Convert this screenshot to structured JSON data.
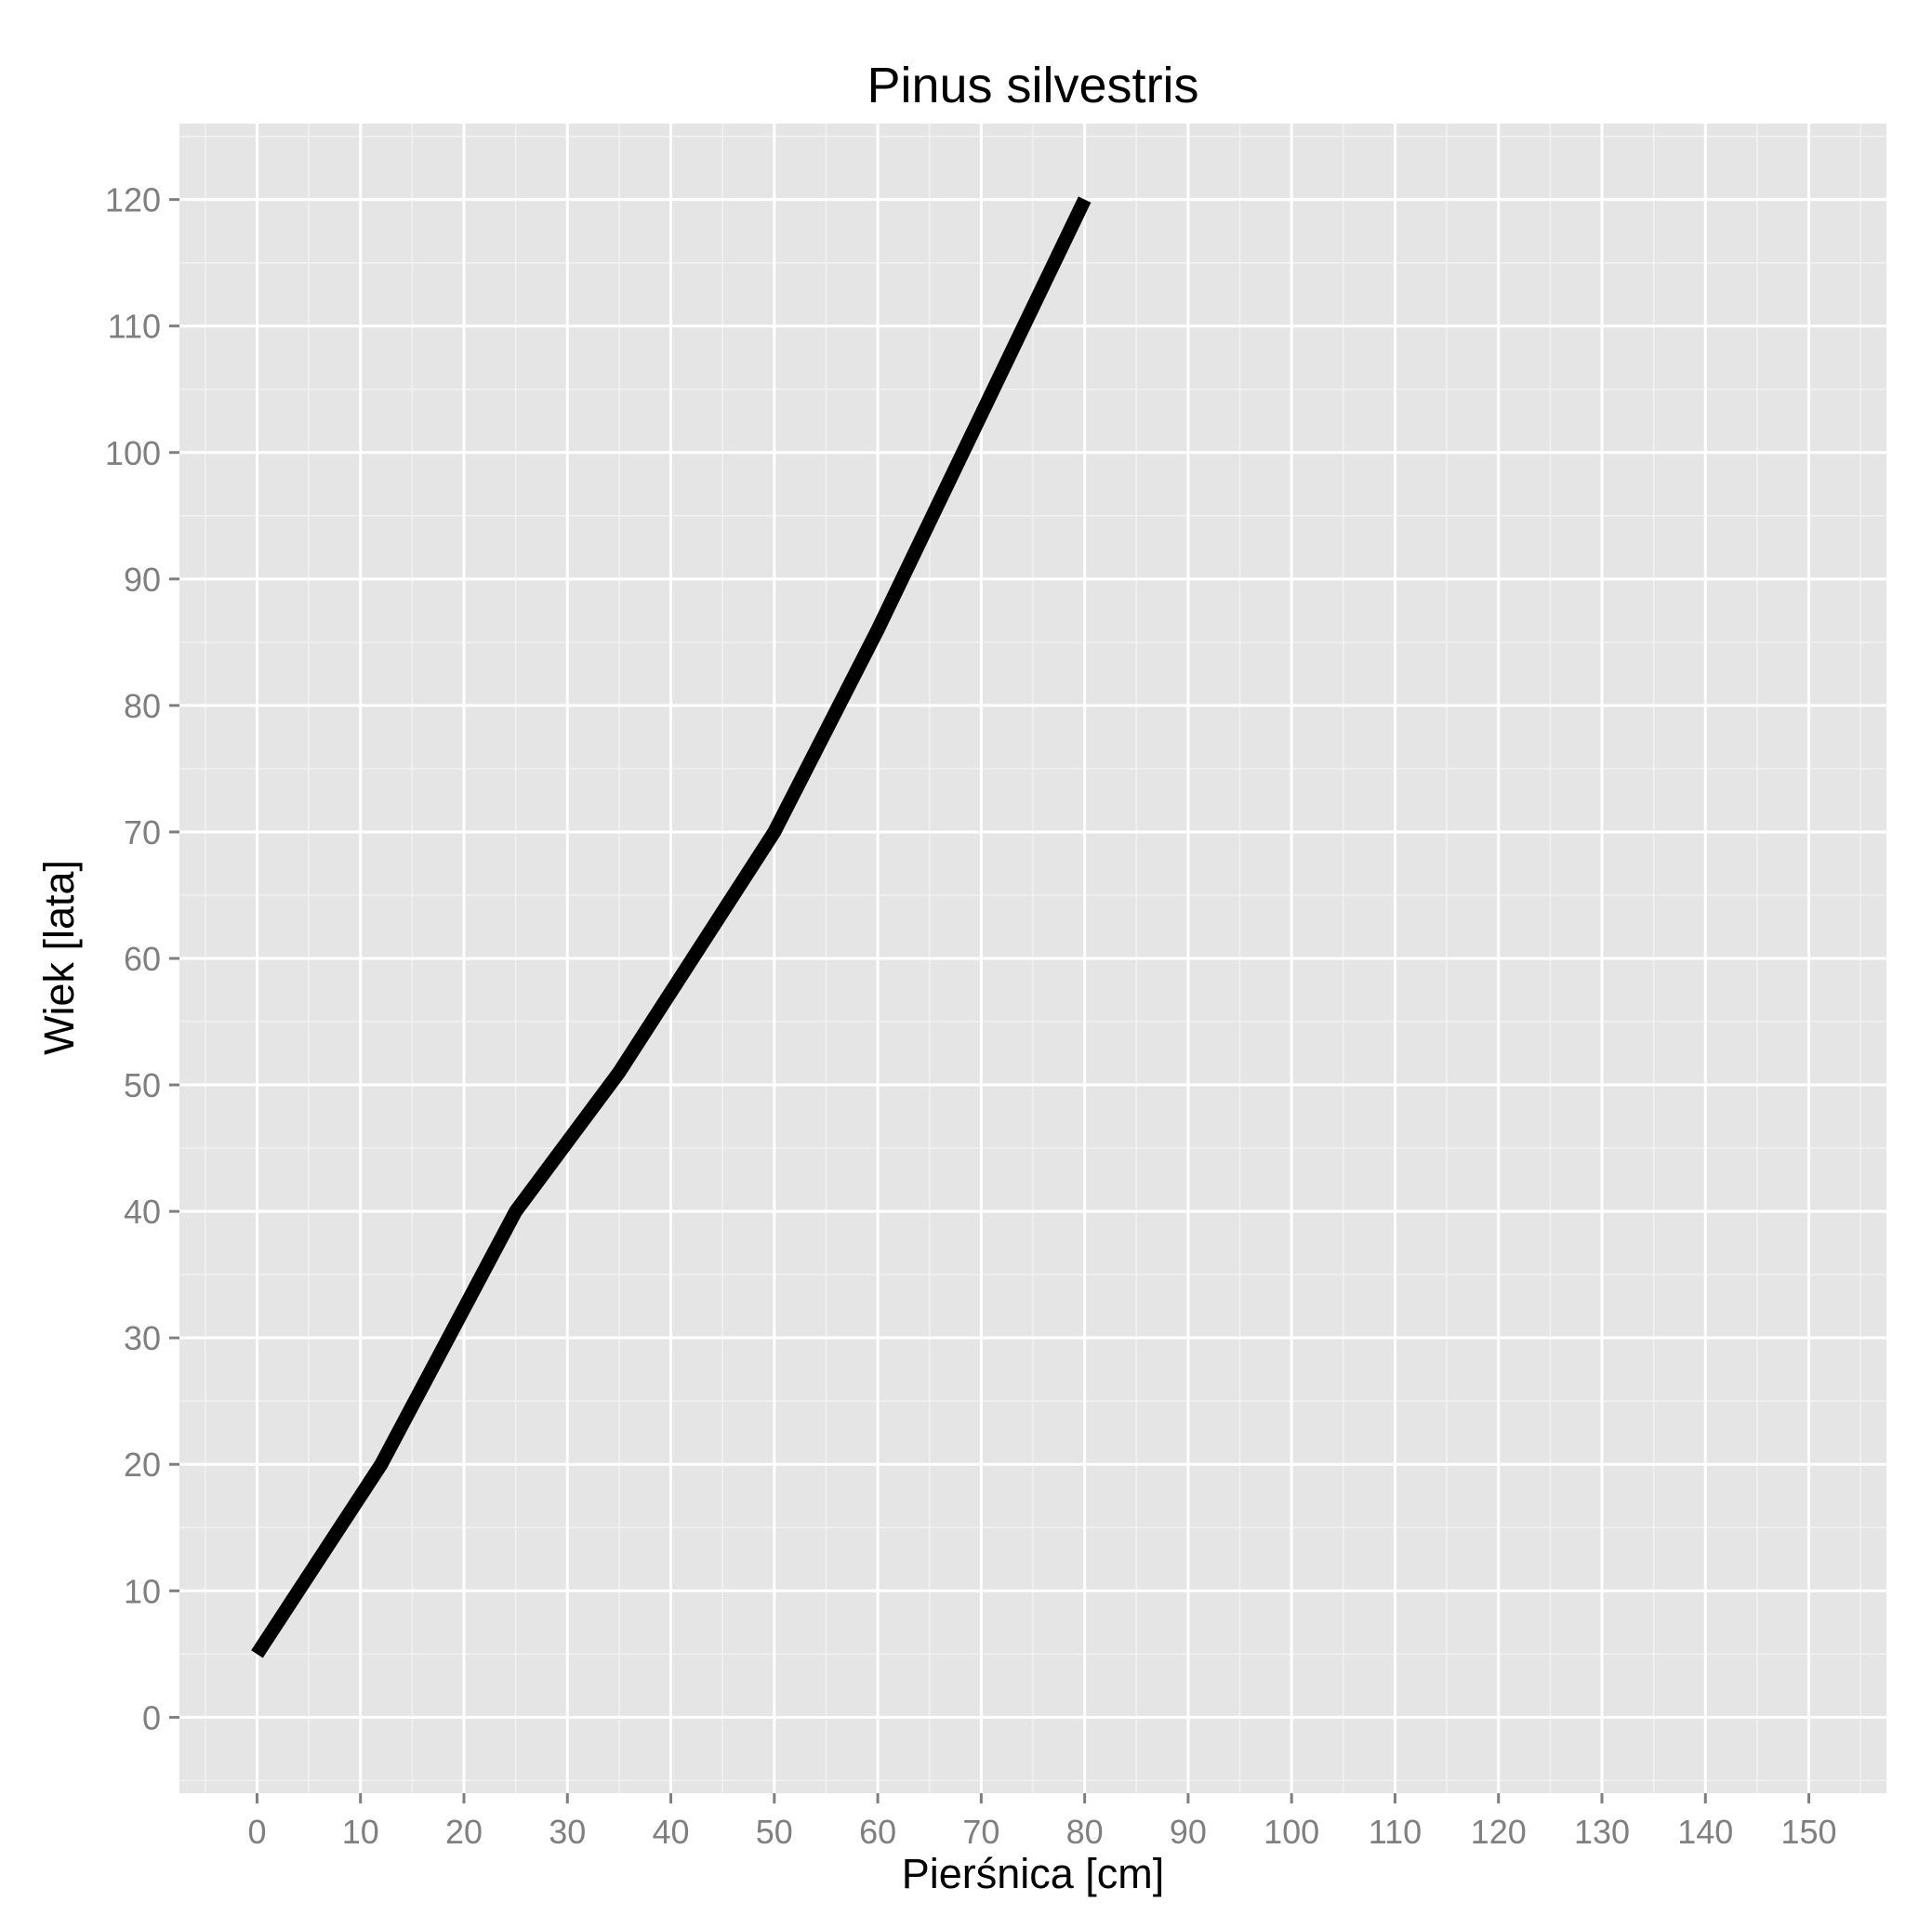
{
  "chart_data": {
    "type": "line",
    "title": "Pinus silvestris",
    "xlabel": "Pierśnica [cm]",
    "ylabel": "Wiek [lata]",
    "xlim": [
      -7.5,
      157.5
    ],
    "ylim": [
      -6,
      126
    ],
    "xticks": [
      0,
      10,
      20,
      30,
      40,
      50,
      60,
      70,
      80,
      90,
      100,
      110,
      120,
      130,
      140,
      150
    ],
    "yticks": [
      0,
      10,
      20,
      30,
      40,
      50,
      60,
      70,
      80,
      90,
      100,
      110,
      120
    ],
    "grid": true,
    "background": "#e5e5e5",
    "line_color": "#000000",
    "series": [
      {
        "x": [
          0,
          12,
          25,
          35,
          50,
          60,
          70,
          80
        ],
        "y": [
          5,
          20,
          40,
          51,
          70,
          86,
          103,
          120
        ]
      }
    ]
  }
}
